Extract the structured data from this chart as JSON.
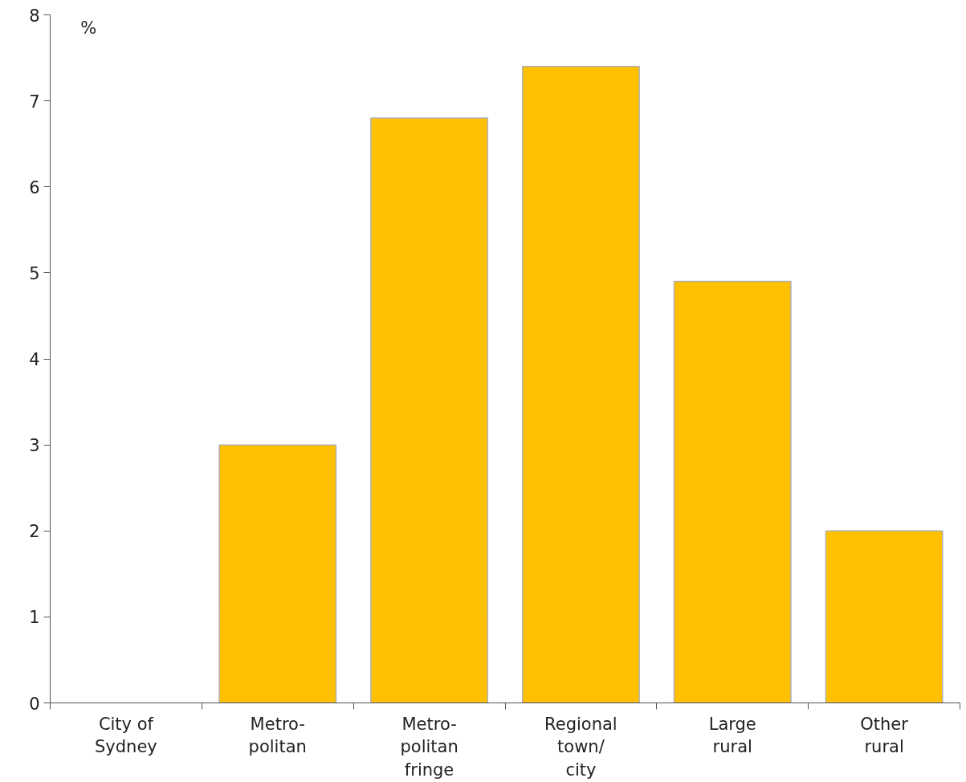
{
  "chart_data": {
    "type": "bar",
    "ylabel": "%",
    "categories": [
      "City of\nSydney",
      "Metro-\npolitan",
      "Metro-\npolitan\nfringe",
      "Regional\ntown/\ncity",
      "Large\nrural",
      "Other\nrural"
    ],
    "values": [
      null,
      3.0,
      6.8,
      7.4,
      4.9,
      2.0
    ],
    "color": "#ffc000",
    "ylim": [
      0,
      8
    ],
    "yticks": [
      0,
      1,
      2,
      3,
      4,
      5,
      6,
      7,
      8
    ]
  }
}
